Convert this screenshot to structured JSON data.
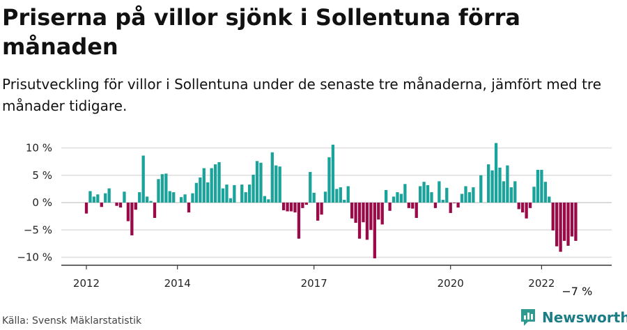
{
  "title": "Priserna på villor sjönk i Sollentuna förra månaden",
  "subtitle": "Prisutveckling för villor i Sollentuna under de senaste tre månaderna, jämfört med tre månader tidigare.",
  "source": "Källa: Svensk Mäklarstatistik",
  "brand": {
    "name": "Newsworthy",
    "icon": "newsworthy-logo-icon",
    "color": "#2f9a8f"
  },
  "colors": {
    "positive": "#1aa39a",
    "negative": "#9b0a48",
    "grid": "#dddddd",
    "axis": "#333333"
  },
  "chart_data": {
    "type": "bar",
    "x_unit": "month",
    "start_month": "2012-01",
    "x_ticks": [
      "2012",
      "2014",
      "2017",
      "2020",
      "2022"
    ],
    "y_ticks": [
      "10 %",
      "5 %",
      "0 %",
      "−5 %",
      "−10 %"
    ],
    "ylim": [
      -11,
      11
    ],
    "grid": true,
    "annotation": "−7 %",
    "values": [
      -2.0,
      2.1,
      1.1,
      1.5,
      -0.8,
      1.7,
      2.6,
      0,
      -0.6,
      -0.9,
      2.0,
      -3.4,
      -6.0,
      -1.3,
      1.9,
      8.6,
      1.1,
      0.3,
      -2.8,
      4.3,
      5.2,
      5.3,
      2.1,
      1.9,
      0,
      1.0,
      1.5,
      -1.8,
      1.7,
      3.6,
      4.6,
      6.3,
      3.7,
      6.3,
      7.0,
      7.4,
      2.6,
      3.3,
      0.8,
      3.2,
      0,
      3.3,
      1.9,
      3.3,
      5.1,
      7.6,
      7.3,
      1.2,
      0.6,
      9.2,
      6.8,
      6.6,
      -1.4,
      -1.6,
      -1.6,
      -1.8,
      -6.6,
      -1.0,
      -0.4,
      5.6,
      1.8,
      -3.3,
      -2.2,
      2.0,
      8.3,
      10.6,
      2.5,
      2.8,
      0.5,
      3.0,
      -2.9,
      -3.7,
      -6.6,
      -3.6,
      -6.8,
      -5.0,
      -10.2,
      -3.1,
      -4.0,
      2.3,
      -1.5,
      1.1,
      1.9,
      1.6,
      3.4,
      -1.0,
      -1.1,
      -2.8,
      3.0,
      3.8,
      3.2,
      1.9,
      -1.0,
      3.9,
      0.5,
      2.7,
      -1.9,
      -0.1,
      -0.9,
      1.6,
      3.0,
      1.9,
      2.8,
      0,
      5.0,
      0,
      7.0,
      5.9,
      10.9,
      6.4,
      3.9,
      6.8,
      2.8,
      3.9,
      -1.2,
      -1.8,
      -2.9,
      -1.0,
      2.9,
      6.0,
      6.0,
      3.8,
      1.1,
      -5.1,
      -8.0,
      -9.0,
      -7.0,
      -7.9,
      -6.2,
      -7.0
    ]
  }
}
